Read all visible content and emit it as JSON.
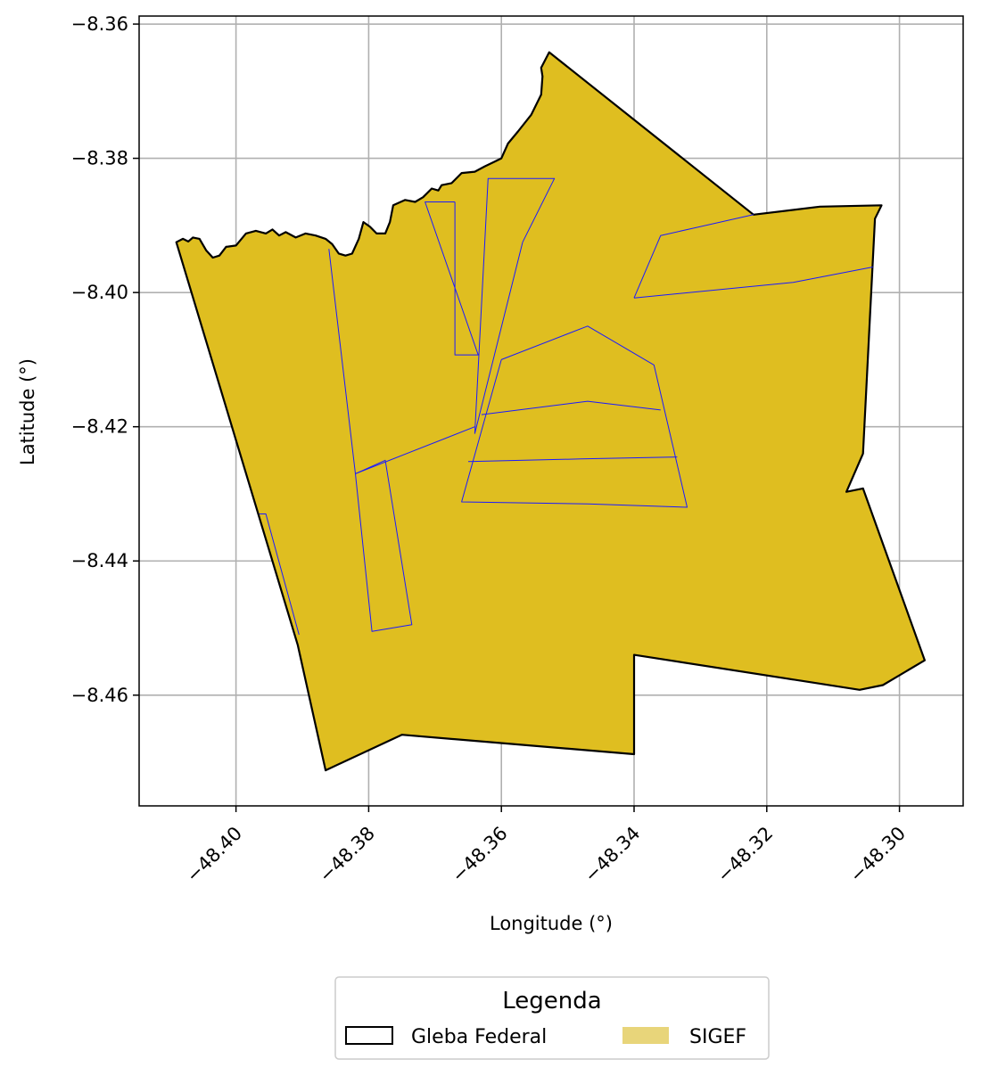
{
  "chart_data": {
    "type": "map",
    "xlabel": "Longitude (°)",
    "ylabel": "Latitude (°)",
    "xlim": [
      -48.4146,
      -48.2904
    ],
    "ylim": [
      -8.4765,
      -8.3588
    ],
    "x_ticks": [
      {
        "value": -48.4,
        "label": "−48.40"
      },
      {
        "value": -48.38,
        "label": "−48.38"
      },
      {
        "value": -48.36,
        "label": "−48.36"
      },
      {
        "value": -48.34,
        "label": "−48.34"
      },
      {
        "value": -48.32,
        "label": "−48.32"
      },
      {
        "value": -48.3,
        "label": "−48.30"
      }
    ],
    "y_ticks": [
      {
        "value": -8.36,
        "label": "−8.36"
      },
      {
        "value": -8.38,
        "label": "−8.38"
      },
      {
        "value": -8.4,
        "label": "−8.40"
      },
      {
        "value": -8.42,
        "label": "−8.42"
      },
      {
        "value": -8.44,
        "label": "−8.44"
      },
      {
        "value": -8.46,
        "label": "−8.46"
      }
    ],
    "grid": true,
    "legend": {
      "title": "Legenda",
      "placement": "bottom-center",
      "entries": [
        {
          "label": "Gleba Federal",
          "style": "outline",
          "color": "#000000"
        },
        {
          "label": "SIGEF",
          "style": "fill",
          "color": "#e8d57a"
        }
      ]
    },
    "colors": {
      "gleba_fill": "#dfbe20",
      "gleba_edge": "#000000",
      "sigef_edge": "#1a1aff",
      "grid": "#b0b0b0"
    },
    "gleba_federal": [
      [
        -48.409,
        -8.3925
      ],
      [
        -48.408,
        -8.392
      ],
      [
        -48.4072,
        -8.3924
      ],
      [
        -48.4065,
        -8.3918
      ],
      [
        -48.4055,
        -8.392
      ],
      [
        -48.4045,
        -8.3937
      ],
      [
        -48.4035,
        -8.3948
      ],
      [
        -48.4025,
        -8.3945
      ],
      [
        -48.4015,
        -8.3932
      ],
      [
        -48.4,
        -8.393
      ],
      [
        -48.3985,
        -8.3912
      ],
      [
        -48.397,
        -8.3908
      ],
      [
        -48.3955,
        -8.3912
      ],
      [
        -48.3945,
        -8.3906
      ],
      [
        -48.3935,
        -8.3915
      ],
      [
        -48.3925,
        -8.391
      ],
      [
        -48.391,
        -8.3918
      ],
      [
        -48.3895,
        -8.3912
      ],
      [
        -48.388,
        -8.3915
      ],
      [
        -48.3865,
        -8.392
      ],
      [
        -48.3855,
        -8.3928
      ],
      [
        -48.3845,
        -8.3942
      ],
      [
        -48.3835,
        -8.3945
      ],
      [
        -48.3825,
        -8.3942
      ],
      [
        -48.3815,
        -8.392
      ],
      [
        -48.3808,
        -8.3895
      ],
      [
        -48.3798,
        -8.3902
      ],
      [
        -48.3788,
        -8.3912
      ],
      [
        -48.3775,
        -8.3912
      ],
      [
        -48.3768,
        -8.3895
      ],
      [
        -48.3763,
        -8.387
      ],
      [
        -48.3745,
        -8.3862
      ],
      [
        -48.373,
        -8.3865
      ],
      [
        -48.3718,
        -8.3858
      ],
      [
        -48.3705,
        -8.3845
      ],
      [
        -48.3695,
        -8.3848
      ],
      [
        -48.369,
        -8.384
      ],
      [
        -48.3675,
        -8.3837
      ],
      [
        -48.366,
        -8.3822
      ],
      [
        -48.364,
        -8.382
      ],
      [
        -48.3625,
        -8.3812
      ],
      [
        -48.361,
        -8.3805
      ],
      [
        -48.36,
        -8.38
      ],
      [
        -48.359,
        -8.3778
      ],
      [
        -48.3575,
        -8.376
      ],
      [
        -48.3555,
        -8.3735
      ],
      [
        -48.354,
        -8.3705
      ],
      [
        -48.3538,
        -8.3678
      ],
      [
        -48.354,
        -8.3665
      ],
      [
        -48.3528,
        -8.3642
      ],
      [
        -48.322,
        -8.3884
      ],
      [
        -48.312,
        -8.3872
      ],
      [
        -48.3027,
        -8.387
      ],
      [
        -48.3037,
        -8.389
      ],
      [
        -48.3055,
        -8.424
      ],
      [
        -48.308,
        -8.4297
      ],
      [
        -48.3055,
        -8.4292
      ],
      [
        -48.2962,
        -8.4548
      ],
      [
        -48.3025,
        -8.4585
      ],
      [
        -48.306,
        -8.4592
      ],
      [
        -48.34,
        -8.454
      ],
      [
        -48.34,
        -8.4688
      ],
      [
        -48.375,
        -8.4659
      ],
      [
        -48.3865,
        -8.4712
      ],
      [
        -48.3907,
        -8.4525
      ],
      [
        -48.409,
        -8.3925
      ]
    ],
    "sigef_parcels": [
      [
        [
          -48.3568,
          -8.3925
        ],
        [
          -48.352,
          -8.383
        ],
        [
          -48.362,
          -8.383
        ],
        [
          -48.364,
          -8.421
        ],
        [
          -48.3568,
          -8.3925
        ]
      ],
      [
        [
          -48.367,
          -8.3865
        ],
        [
          -48.3715,
          -8.3865
        ],
        [
          -48.3635,
          -8.4093
        ],
        [
          -48.367,
          -8.4093
        ],
        [
          -48.367,
          -8.3865
        ]
      ],
      [
        [
          -48.386,
          -8.3935
        ],
        [
          -48.382,
          -8.427
        ],
        [
          -48.364,
          -8.42
        ]
      ],
      [
        [
          -48.382,
          -8.427
        ],
        [
          -48.3775,
          -8.425
        ],
        [
          -48.3735,
          -8.4495
        ],
        [
          -48.3795,
          -8.4505
        ],
        [
          -48.382,
          -8.427
        ]
      ],
      [
        [
          -48.3965,
          -8.433
        ],
        [
          -48.3955,
          -8.433
        ],
        [
          -48.3905,
          -8.451
        ]
      ],
      [
        [
          -48.36,
          -8.41
        ],
        [
          -48.347,
          -8.405
        ],
        [
          -48.337,
          -8.4108
        ],
        [
          -48.332,
          -8.432
        ],
        [
          -48.347,
          -8.4315
        ],
        [
          -48.366,
          -8.4312
        ],
        [
          -48.36,
          -8.41
        ]
      ],
      [
        [
          -48.363,
          -8.4182
        ],
        [
          -48.347,
          -8.4162
        ],
        [
          -48.336,
          -8.4175
        ]
      ],
      [
        [
          -48.365,
          -8.4252
        ],
        [
          -48.348,
          -8.4248
        ],
        [
          -48.3335,
          -8.4245
        ]
      ],
      [
        [
          -48.34,
          -8.4008
        ],
        [
          -48.336,
          -8.3915
        ],
        [
          -48.322,
          -8.3884
        ]
      ],
      [
        [
          -48.34,
          -8.4008
        ],
        [
          -48.316,
          -8.3985
        ],
        [
          -48.304,
          -8.3962
        ]
      ]
    ]
  }
}
